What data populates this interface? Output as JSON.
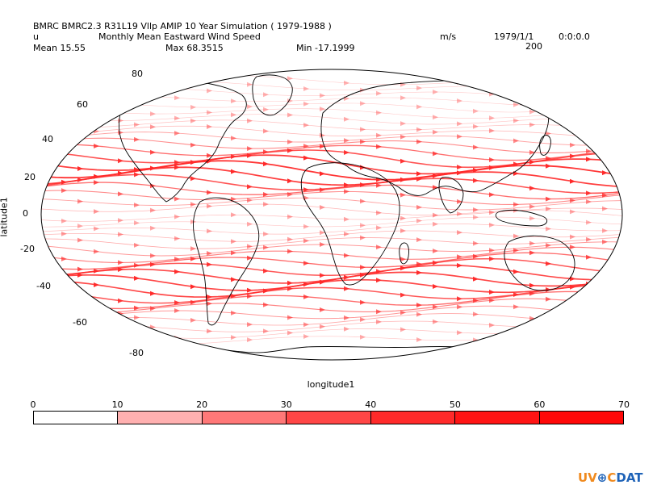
{
  "header": {
    "title": "BMRC BMRC2.3 R31L19 Vllp AMIP 10 Year Simulation ( 1979-1988 )",
    "variable": "u",
    "long_name": "Monthly Mean Eastward Wind Speed",
    "units": "m/s",
    "date": "1979/1/1",
    "time": "0:0:0.0",
    "level": "200",
    "mean": "Mean 15.55",
    "max": "Max 68.3515",
    "min": "Min -17.1999"
  },
  "axes": {
    "ylabel": "latitude1",
    "xlabel": "longitude1",
    "lat_ticks": [
      "80",
      "60",
      "40",
      "20",
      "0",
      "-20",
      "-40",
      "-60",
      "-80"
    ]
  },
  "colorbar": {
    "labels": [
      "0",
      "10",
      "20",
      "30",
      "40",
      "50",
      "60",
      "70"
    ],
    "colors": [
      "#ffffff",
      "#ffb0b0",
      "#ff7878",
      "#ff4646",
      "#ff2a2a",
      "#ff1414",
      "#ff0808"
    ]
  },
  "colors": {
    "stream": "#ff2a2a",
    "coast": "#000000"
  },
  "logo": {
    "part1": "UV",
    "part2": "C",
    "part3": "DAT",
    "globe": "⊕"
  }
}
